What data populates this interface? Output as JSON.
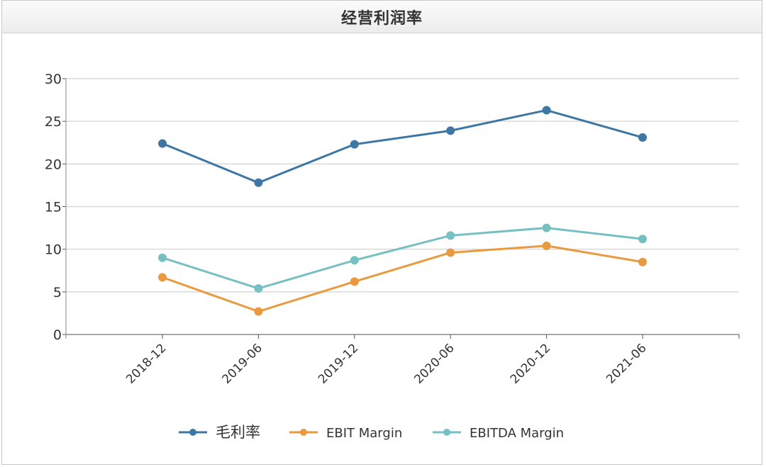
{
  "panel": {
    "title": "经营利润率"
  },
  "chart_data": {
    "type": "line",
    "title": "",
    "xlabel": "",
    "ylabel": "",
    "categories": [
      "2018-12",
      "2019-06",
      "2019-12",
      "2020-06",
      "2020-12",
      "2021-06"
    ],
    "ylim": [
      0,
      30
    ],
    "yticks": [
      0,
      5,
      10,
      15,
      20,
      25,
      30
    ],
    "grid": true,
    "legend": "bottom",
    "series": [
      {
        "name": "毛利率",
        "color": "#3d77a4",
        "values": [
          22.4,
          17.8,
          22.3,
          23.9,
          26.3,
          23.1
        ]
      },
      {
        "name": "EBIT Margin",
        "color": "#ea9a3e",
        "values": [
          6.7,
          2.7,
          6.2,
          9.6,
          10.4,
          8.5
        ]
      },
      {
        "name": "EBITDA Margin",
        "color": "#76c0c3",
        "values": [
          9.0,
          5.4,
          8.7,
          11.6,
          12.5,
          11.2
        ]
      }
    ]
  }
}
